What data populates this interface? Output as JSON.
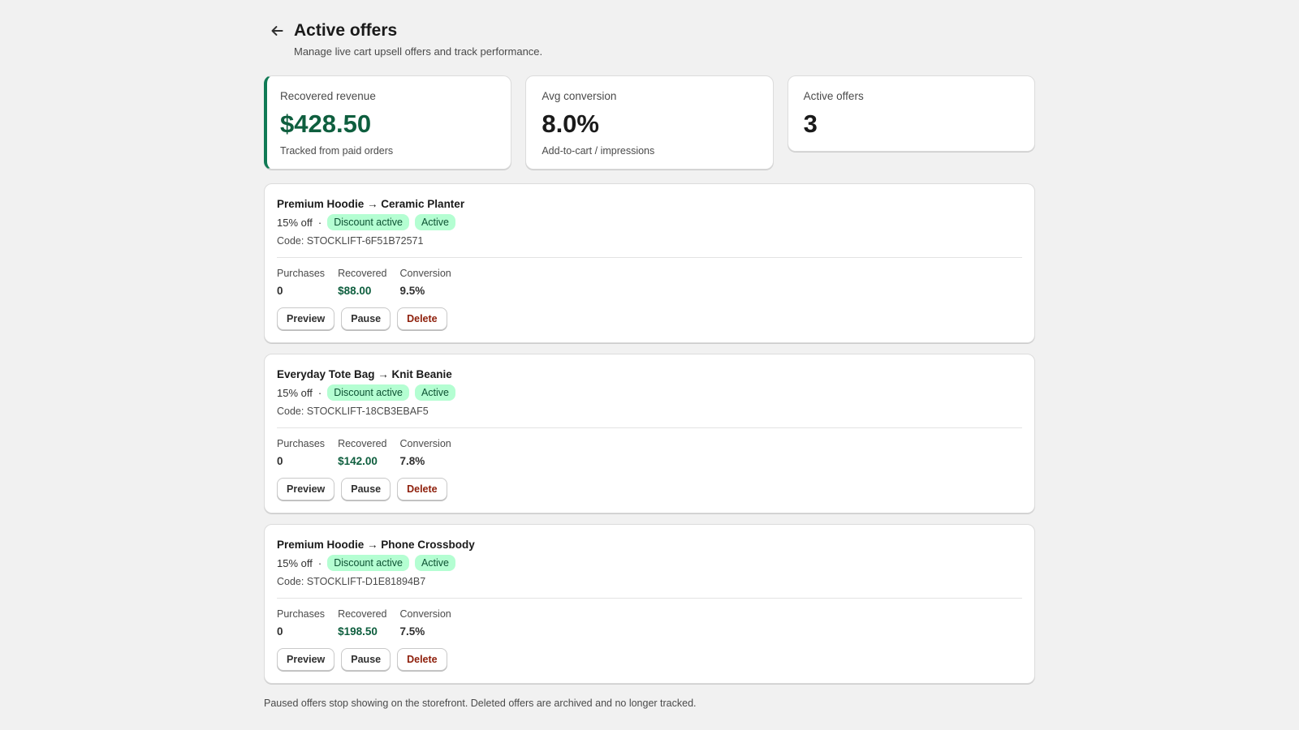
{
  "header": {
    "title": "Active offers",
    "subtitle": "Manage live cart upsell offers and track performance."
  },
  "stats": [
    {
      "label": "Recovered revenue",
      "value": "$428.50",
      "note": "Tracked from paid orders"
    },
    {
      "label": "Avg conversion",
      "value": "8.0%",
      "note": "Add-to-cart / impressions"
    },
    {
      "label": "Active offers",
      "value": "3"
    }
  ],
  "separator": "·",
  "offers": [
    {
      "title": "Premium Hoodie → Ceramic Planter",
      "discount": "15% off",
      "badges": [
        "Discount active",
        "Active"
      ],
      "code": "Code: STOCKLIFT-6F51B72571",
      "metrics": [
        {
          "label": "Purchases",
          "value": "0"
        },
        {
          "label": "Recovered",
          "value": "$88.00"
        },
        {
          "label": "Conversion",
          "value": "9.5%"
        }
      ],
      "actions": [
        "Preview",
        "Pause",
        "Delete"
      ]
    },
    {
      "title": "Everyday Tote Bag → Knit Beanie",
      "discount": "15% off",
      "badges": [
        "Discount active",
        "Active"
      ],
      "code": "Code: STOCKLIFT-18CB3EBAF5",
      "metrics": [
        {
          "label": "Purchases",
          "value": "0"
        },
        {
          "label": "Recovered",
          "value": "$142.00"
        },
        {
          "label": "Conversion",
          "value": "7.8%"
        }
      ],
      "actions": [
        "Preview",
        "Pause",
        "Delete"
      ]
    },
    {
      "title": "Premium Hoodie → Phone Crossbody",
      "discount": "15% off",
      "badges": [
        "Discount active",
        "Active"
      ],
      "code": "Code: STOCKLIFT-D1E81894B7",
      "metrics": [
        {
          "label": "Purchases",
          "value": "0"
        },
        {
          "label": "Recovered",
          "value": "$198.50"
        },
        {
          "label": "Conversion",
          "value": "7.5%"
        }
      ],
      "actions": [
        "Preview",
        "Pause",
        "Delete"
      ]
    }
  ],
  "footer": "Paused offers stop showing on the storefront. Deleted offers are archived and no longer tracked."
}
